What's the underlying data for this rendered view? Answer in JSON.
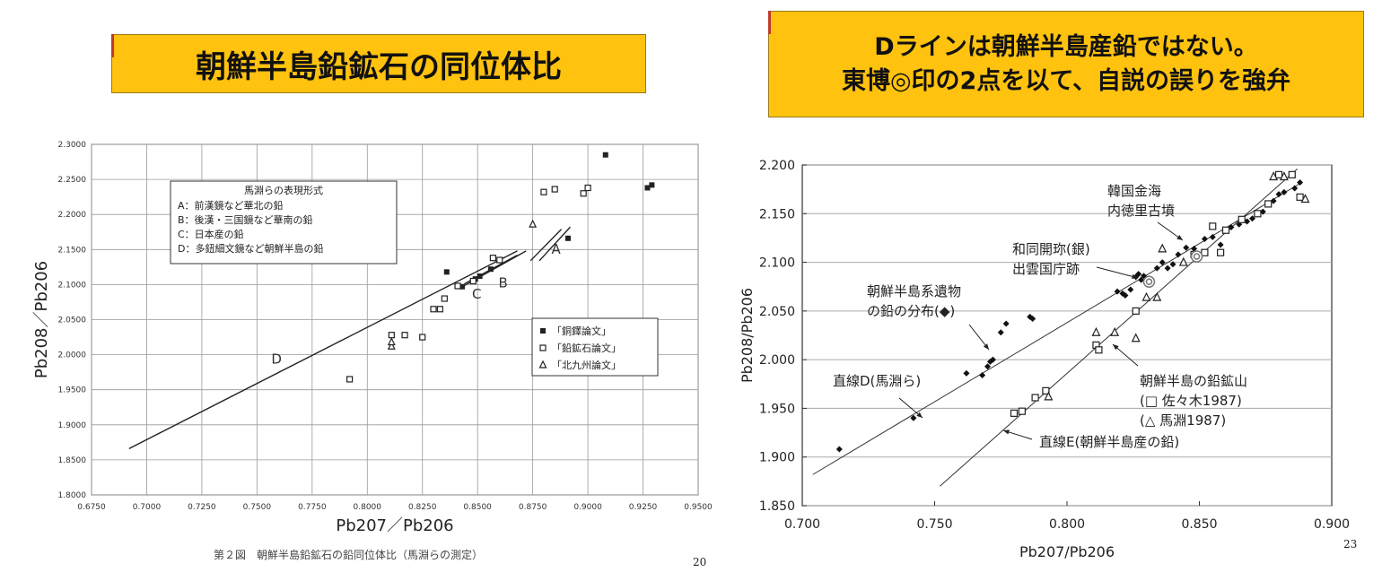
{
  "left_title": "朝鮮半島鉛鉱石の同位体比",
  "right_title": {
    "line1": "Dラインは朝鮮半島産鉛ではない。",
    "line2": "東博◎印の2点を以て、自説の誤りを強弁"
  },
  "left_caption": "第２図　朝鮮半島鉛鉱石の鉛同位体比（馬淵らの測定）",
  "left_page_number": "20",
  "right_page_number": "23",
  "chart_data": [
    {
      "type": "scatter",
      "xlabel": "Pb207／Pb206",
      "ylabel": "Pb208／Pb206",
      "xlim": [
        0.675,
        0.95
      ],
      "ylim": [
        1.8,
        2.3
      ],
      "grid": "horizontal",
      "x_ticks": [
        "0.6750",
        "0.7000",
        "0.7250",
        "0.7500",
        "0.7750",
        "0.8000",
        "0.8250",
        "0.8500",
        "0.8750",
        "0.9000",
        "0.9250",
        "0.9500"
      ],
      "y_ticks": [
        "1.8000",
        "1.8500",
        "1.9000",
        "1.9500",
        "2.0000",
        "2.0500",
        "2.1000",
        "2.1500",
        "2.2000",
        "2.2500",
        "2.3000"
      ],
      "definition_box": {
        "heading": "馬淵らの表現形式",
        "lines": [
          "A：前漢鏡など華北の鉛",
          "B：後漢・三国鏡など華南の鉛",
          "C：日本産の鉛",
          "D：多鈕細文鏡など朝鮮半島の鉛"
        ]
      },
      "legend_placement": "bottom-right",
      "series": [
        {
          "name": "「銅鐸論文」",
          "marker": "filled-square",
          "points": [
            [
              0.836,
              2.118
            ],
            [
              0.843,
              2.097
            ],
            [
              0.849,
              2.108
            ],
            [
              0.851,
              2.112
            ],
            [
              0.856,
              2.122
            ],
            [
              0.891,
              2.166
            ],
            [
              0.908,
              2.285
            ],
            [
              0.927,
              2.238
            ],
            [
              0.929,
              2.242
            ]
          ]
        },
        {
          "name": "「鉛鉱石論文」",
          "marker": "open-square",
          "points": [
            [
              0.792,
              1.965
            ],
            [
              0.811,
              2.028
            ],
            [
              0.817,
              2.028
            ],
            [
              0.825,
              2.025
            ],
            [
              0.83,
              2.065
            ],
            [
              0.833,
              2.065
            ],
            [
              0.835,
              2.08
            ],
            [
              0.841,
              2.098
            ],
            [
              0.848,
              2.105
            ],
            [
              0.857,
              2.138
            ],
            [
              0.86,
              2.135
            ],
            [
              0.88,
              2.232
            ],
            [
              0.885,
              2.236
            ],
            [
              0.898,
              2.23
            ],
            [
              0.9,
              2.238
            ]
          ]
        },
        {
          "name": "「北九州論文」",
          "marker": "triangle",
          "points": [
            [
              0.811,
              2.012
            ],
            [
              0.811,
              2.018
            ],
            [
              0.875,
              2.186
            ]
          ]
        }
      ],
      "lines": [
        {
          "label": "A",
          "points": [
            [
              0.874,
              2.134
            ],
            [
              0.888,
              2.179
            ]
          ]
        },
        {
          "label": "A",
          "points": [
            [
              0.878,
              2.134
            ],
            [
              0.892,
              2.182
            ]
          ]
        },
        {
          "label": "B",
          "points": [
            [
              0.842,
              2.095
            ],
            [
              0.872,
              2.148
            ]
          ]
        },
        {
          "label": "C",
          "points": [
            [
              0.844,
              2.101
            ],
            [
              0.868,
              2.142
            ]
          ]
        },
        {
          "label": "D",
          "points": [
            [
              0.692,
              1.866
            ],
            [
              0.868,
              2.148
            ]
          ]
        }
      ]
    },
    {
      "type": "scatter",
      "xlabel": "Pb207/Pb206",
      "ylabel": "Pb208/Pb206",
      "xlim": [
        0.7,
        0.9
      ],
      "ylim": [
        1.85,
        2.2
      ],
      "grid": "horizontal",
      "x_ticks": [
        "0.700",
        "0.750",
        "0.800",
        "0.850",
        "0.900"
      ],
      "y_ticks": [
        "1.850",
        "1.900",
        "1.950",
        "2.000",
        "2.050",
        "2.100",
        "2.150",
        "2.200"
      ],
      "series": [
        {
          "marker": "diamond",
          "points": [
            [
              0.714,
              1.908
            ],
            [
              0.742,
              1.94
            ],
            [
              0.762,
              1.986
            ],
            [
              0.768,
              1.984
            ],
            [
              0.77,
              1.993
            ],
            [
              0.771,
              1.998
            ],
            [
              0.772,
              2.0
            ],
            [
              0.775,
              2.028
            ],
            [
              0.777,
              2.037
            ],
            [
              0.786,
              2.044
            ],
            [
              0.787,
              2.042
            ],
            [
              0.819,
              2.07
            ],
            [
              0.821,
              2.068
            ],
            [
              0.822,
              2.066
            ],
            [
              0.824,
              2.072
            ],
            [
              0.826,
              2.085
            ],
            [
              0.827,
              2.088
            ],
            [
              0.828,
              2.082
            ],
            [
              0.829,
              2.086
            ],
            [
              0.834,
              2.094
            ],
            [
              0.836,
              2.1
            ],
            [
              0.838,
              2.094
            ],
            [
              0.84,
              2.098
            ],
            [
              0.842,
              2.108
            ],
            [
              0.845,
              2.115
            ],
            [
              0.848,
              2.114
            ],
            [
              0.852,
              2.124
            ],
            [
              0.855,
              2.126
            ],
            [
              0.858,
              2.118
            ],
            [
              0.862,
              2.136
            ],
            [
              0.865,
              2.139
            ],
            [
              0.868,
              2.142
            ],
            [
              0.87,
              2.145
            ],
            [
              0.874,
              2.152
            ],
            [
              0.876,
              2.16
            ],
            [
              0.878,
              2.163
            ],
            [
              0.88,
              2.17
            ],
            [
              0.882,
              2.172
            ],
            [
              0.886,
              2.176
            ],
            [
              0.888,
              2.182
            ]
          ]
        },
        {
          "name": "□ 佐々木1987",
          "marker": "open-square",
          "points": [
            [
              0.78,
              1.945
            ],
            [
              0.783,
              1.947
            ],
            [
              0.788,
              1.961
            ],
            [
              0.792,
              1.968
            ],
            [
              0.811,
              2.015
            ],
            [
              0.812,
              2.01
            ],
            [
              0.826,
              2.05
            ],
            [
              0.848,
              2.108
            ],
            [
              0.852,
              2.11
            ],
            [
              0.855,
              2.137
            ],
            [
              0.858,
              2.11
            ],
            [
              0.86,
              2.133
            ],
            [
              0.866,
              2.144
            ],
            [
              0.872,
              2.15
            ],
            [
              0.876,
              2.16
            ],
            [
              0.88,
              2.19
            ],
            [
              0.885,
              2.19
            ],
            [
              0.888,
              2.167
            ]
          ]
        },
        {
          "name": "△ 馬淵1987",
          "marker": "triangle",
          "points": [
            [
              0.793,
              1.962
            ],
            [
              0.811,
              2.028
            ],
            [
              0.818,
              2.028
            ],
            [
              0.826,
              2.022
            ],
            [
              0.83,
              2.064
            ],
            [
              0.834,
              2.064
            ],
            [
              0.836,
              2.114
            ],
            [
              0.844,
              2.1
            ],
            [
              0.878,
              2.188
            ],
            [
              0.882,
              2.188
            ],
            [
              0.89,
              2.165
            ]
          ]
        },
        {
          "name": "東博◎印",
          "marker": "double-circle",
          "points": [
            [
              0.831,
              2.08
            ],
            [
              0.849,
              2.106
            ]
          ]
        }
      ],
      "lines": [
        {
          "label": "直線D(馬淵ら)",
          "points": [
            [
              0.704,
              1.882
            ],
            [
              0.888,
              2.181
            ]
          ]
        },
        {
          "label": "直線E(朝鮮半島産の鉛)",
          "points": [
            [
              0.752,
              1.87
            ],
            [
              0.887,
              2.196
            ]
          ]
        }
      ],
      "annotations": [
        {
          "text_lines": [
            "韓国金海",
            "内徳里古墳"
          ]
        },
        {
          "text_lines": [
            "和同開珎(銀)",
            "出雲国庁跡"
          ]
        },
        {
          "text_lines": [
            "朝鮮半島系遺物",
            "の鉛の分布(◆)"
          ]
        },
        {
          "text_lines": [
            "直線D(馬淵ら)"
          ]
        },
        {
          "text_lines": [
            "朝鮮半島の鉛鉱山",
            "(□ 佐々木1987)",
            "(△ 馬淵1987)"
          ]
        },
        {
          "text_lines": [
            "直線E(朝鮮半島産の鉛)"
          ]
        }
      ]
    }
  ]
}
